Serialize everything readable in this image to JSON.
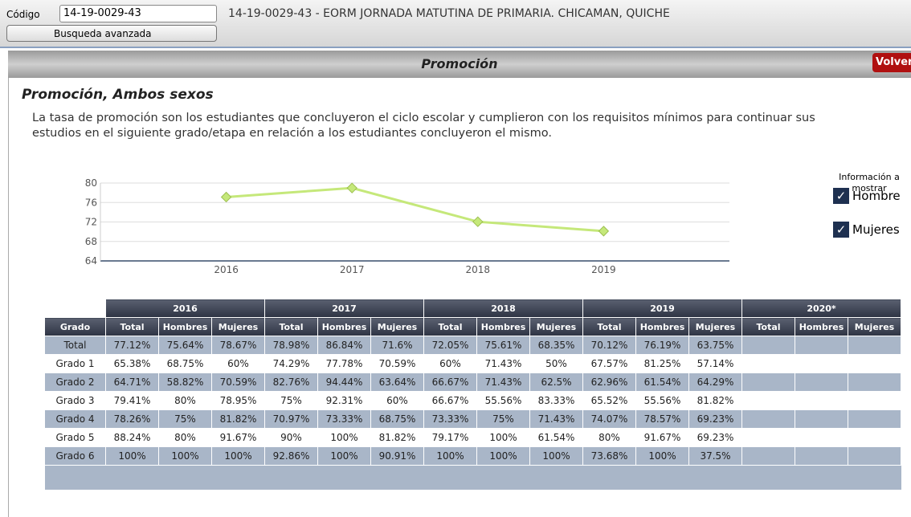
{
  "header": {
    "code_label": "Código",
    "code_value": "14-19-0029-43",
    "advanced_search": "Busqueda avanzada",
    "school": "14-19-0029-43 - EORM JORNADA MATUTINA DE PRIMARIA. CHICAMAN, QUICHE"
  },
  "panel": {
    "title": "Promoción",
    "back": "Volver"
  },
  "section": {
    "title": "Promoción, Ambos sexos",
    "description": "La tasa de promoción son los estudiantes que concluyeron el ciclo escolar y cumplieron con los requisitos mínimos para continuar sus estudios en el siguiente grado/etapa en relación a los estudiantes concluyeron el mismo."
  },
  "filters": {
    "title": "Información a mostrar",
    "options": [
      "Hombre",
      "Mujeres"
    ]
  },
  "chart_data": {
    "type": "line",
    "categories": [
      "2016",
      "2017",
      "2018",
      "2019"
    ],
    "series": [
      {
        "color": "#c5e87a",
        "values": [
          77.12,
          78.98,
          72.05,
          70.12
        ]
      }
    ],
    "ylim": [
      64,
      80
    ],
    "yticks": [
      64,
      68,
      72,
      76,
      80
    ],
    "grid": true
  },
  "table": {
    "years": [
      "2016",
      "2017",
      "2018",
      "2019",
      "2020*"
    ],
    "header_row": [
      "Grado",
      "Total",
      "Hombres",
      "Mujeres",
      "Total",
      "Hombres",
      "Mujeres",
      "Total",
      "Hombres",
      "Mujeres",
      "Total",
      "Hombres",
      "Mujeres",
      "Total",
      "Hombres",
      "Mujeres"
    ],
    "rows": [
      [
        "Total",
        "77.12%",
        "75.64%",
        "78.67%",
        "78.98%",
        "86.84%",
        "71.6%",
        "72.05%",
        "75.61%",
        "68.35%",
        "70.12%",
        "76.19%",
        "63.75%"
      ],
      [
        "Grado 1",
        "65.38%",
        "68.75%",
        "60%",
        "74.29%",
        "77.78%",
        "70.59%",
        "60%",
        "71.43%",
        "50%",
        "67.57%",
        "81.25%",
        "57.14%"
      ],
      [
        "Grado 2",
        "64.71%",
        "58.82%",
        "70.59%",
        "82.76%",
        "94.44%",
        "63.64%",
        "66.67%",
        "71.43%",
        "62.5%",
        "62.96%",
        "61.54%",
        "64.29%"
      ],
      [
        "Grado 3",
        "79.41%",
        "80%",
        "78.95%",
        "75%",
        "92.31%",
        "60%",
        "66.67%",
        "55.56%",
        "83.33%",
        "65.52%",
        "55.56%",
        "81.82%"
      ],
      [
        "Grado 4",
        "78.26%",
        "75%",
        "81.82%",
        "70.97%",
        "73.33%",
        "68.75%",
        "73.33%",
        "75%",
        "71.43%",
        "74.07%",
        "78.57%",
        "69.23%"
      ],
      [
        "Grado 5",
        "88.24%",
        "80%",
        "91.67%",
        "90%",
        "100%",
        "81.82%",
        "79.17%",
        "100%",
        "61.54%",
        "80%",
        "91.67%",
        "69.23%"
      ],
      [
        "Grado 6",
        "100%",
        "100%",
        "100%",
        "92.86%",
        "100%",
        "90.91%",
        "100%",
        "100%",
        "100%",
        "73.68%",
        "100%",
        "37.5%"
      ]
    ]
  }
}
